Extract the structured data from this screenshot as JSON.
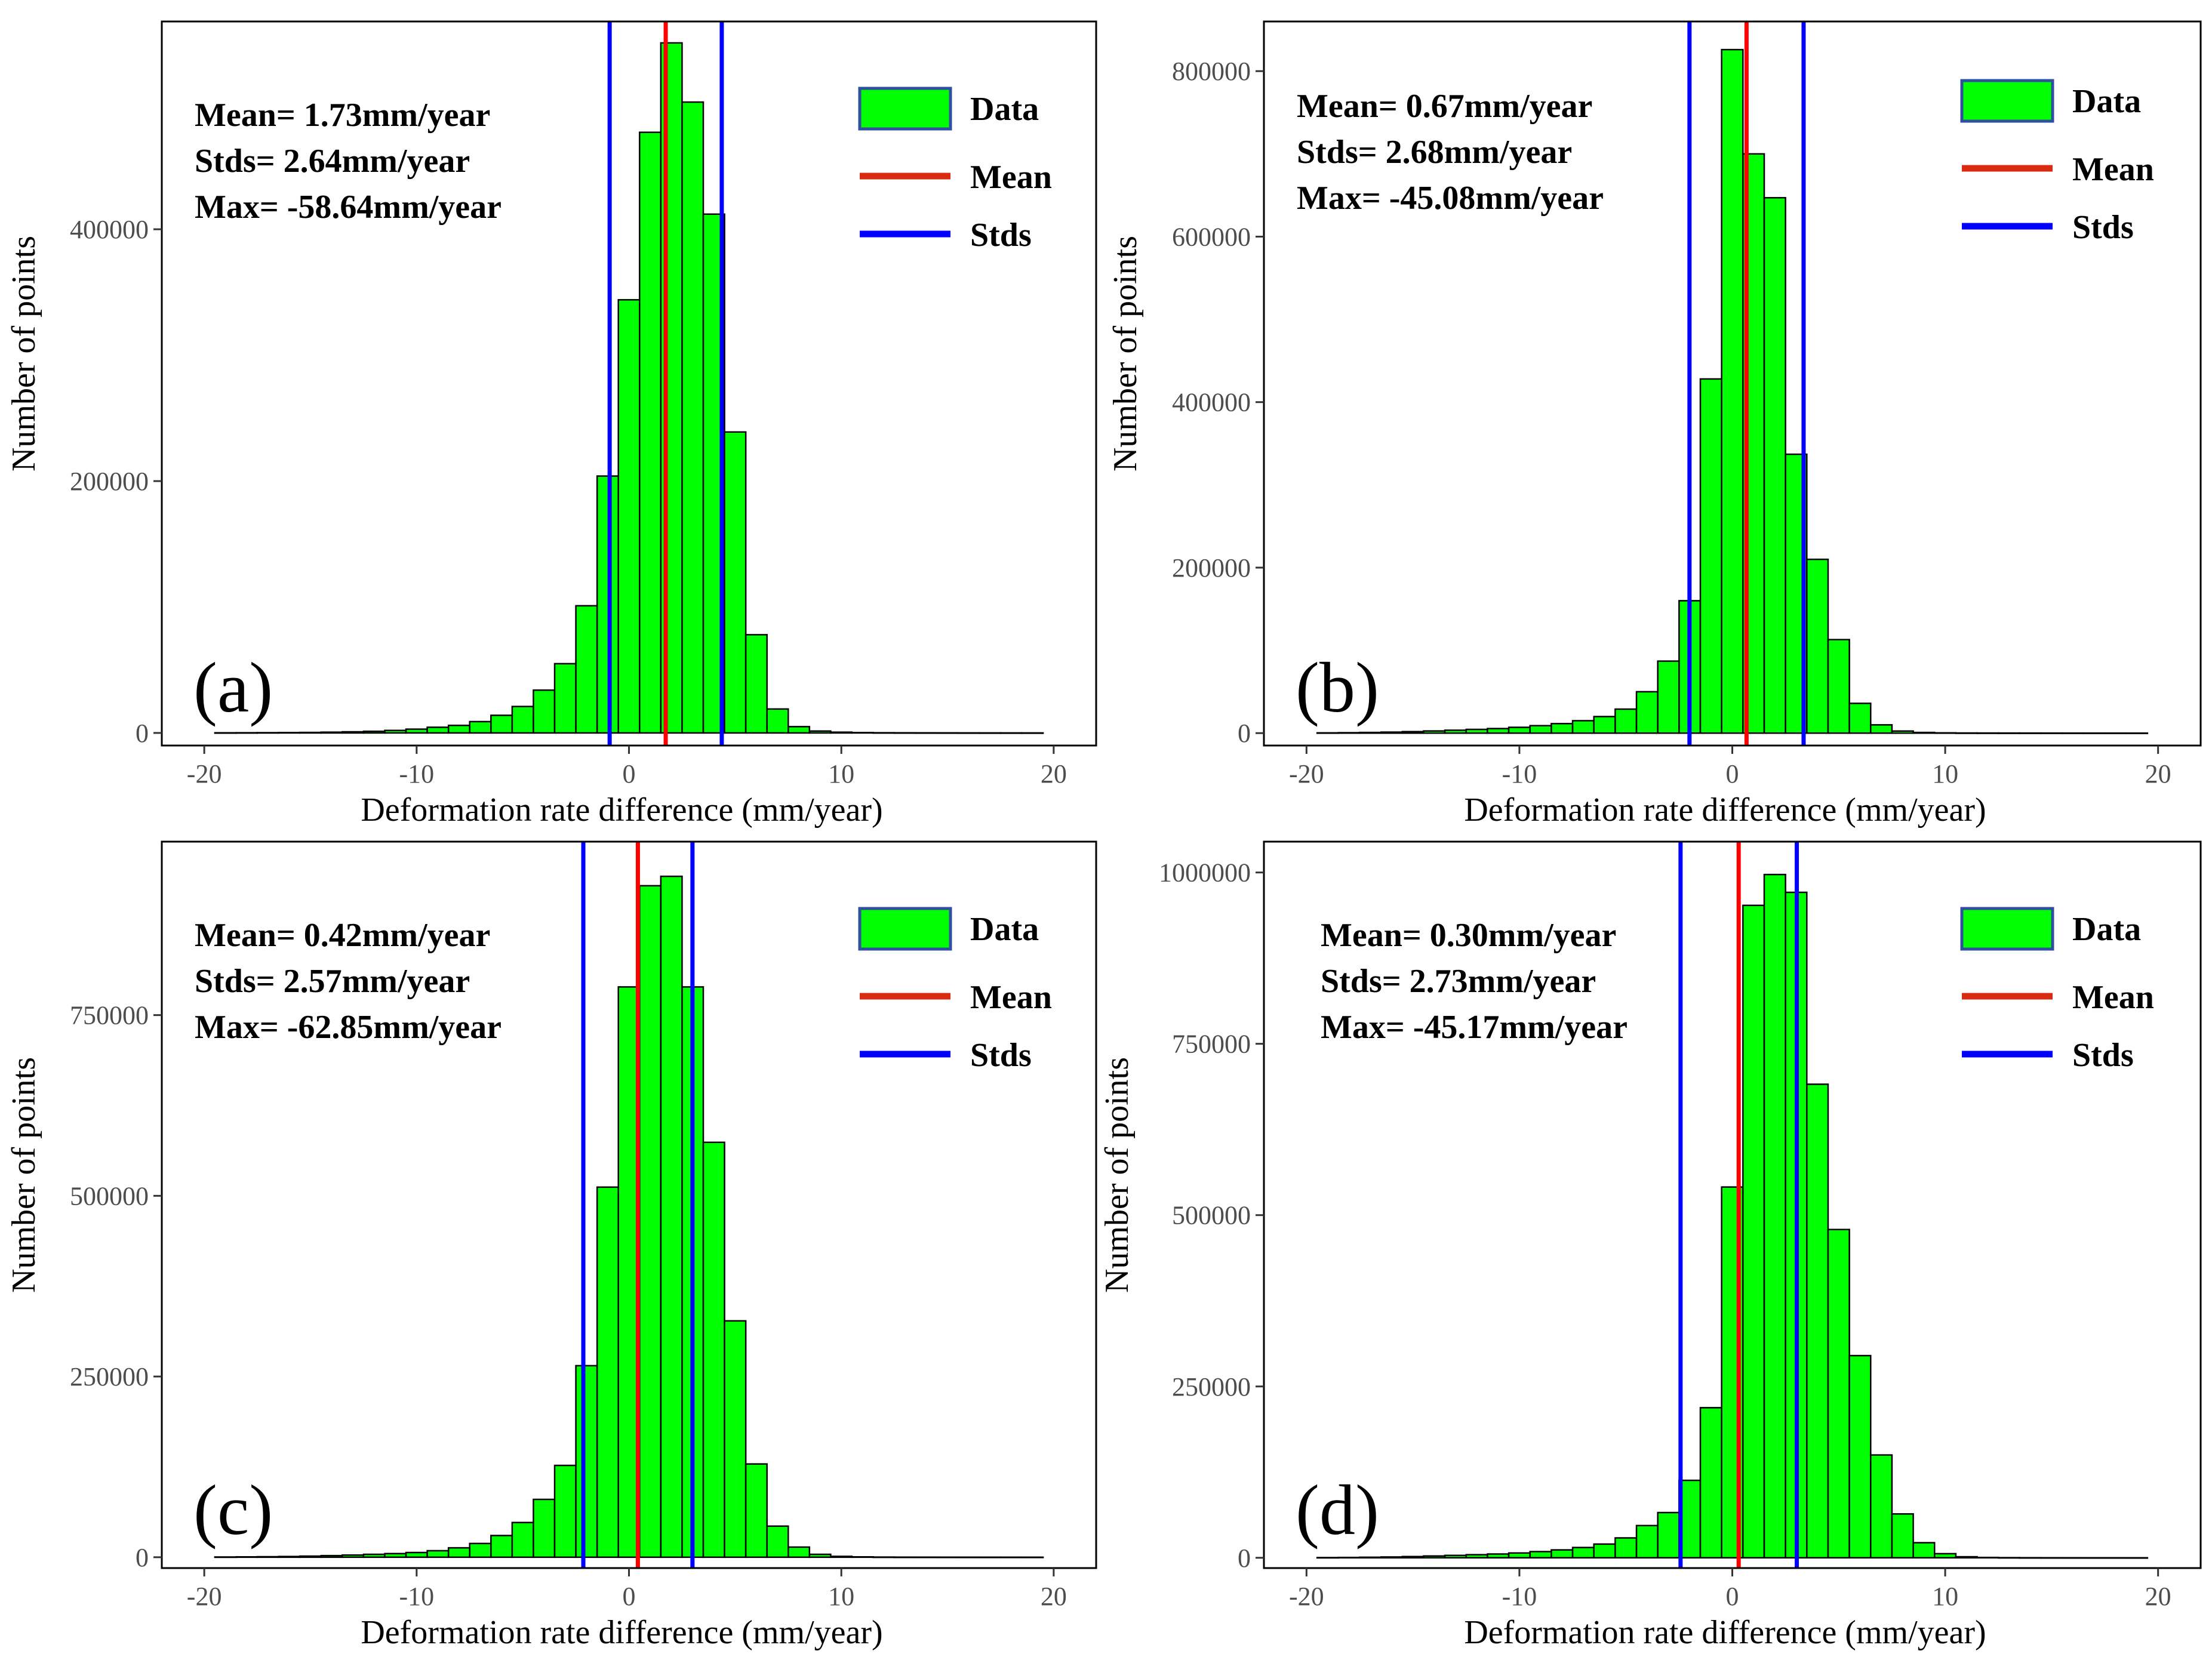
{
  "figure_colors": {
    "bar_fill": "#00ff00",
    "bar_stroke": "#000000",
    "mean_line": "#ff0000",
    "std_line": "#0000ff",
    "legend_mean": "#d92b10",
    "legend_box_stroke": "#2f4f9f"
  },
  "legend_items": [
    "Data",
    "Mean",
    "Stds"
  ],
  "chart_data": [
    {
      "type": "bar",
      "panel_label": "(a)",
      "title": "",
      "xlabel": "Deformation rate difference (mm/year)",
      "ylabel": "Number of points",
      "xlim": [
        -22,
        22
      ],
      "ylim": [
        -10000,
        565000
      ],
      "xticks": [
        -20,
        -10,
        0,
        10,
        20
      ],
      "yticks": [
        0,
        200000,
        400000
      ],
      "ytick_labels": [
        "0",
        "200000",
        "400000"
      ],
      "stats": [
        "Mean= 1.73mm/year",
        "Stds= 2.64mm/year",
        "Max= -58.64mm/year"
      ],
      "mean": 1.73,
      "std_lines": [
        -0.91,
        4.37
      ],
      "bin_width": 1,
      "x": [
        -19,
        -18,
        -17,
        -16,
        -15,
        -14,
        -13,
        -12,
        -11,
        -10,
        -9,
        -8,
        -7,
        -6,
        -5,
        -4,
        -3,
        -2,
        -1,
        0,
        1,
        2,
        3,
        4,
        5,
        6,
        7,
        8,
        9,
        10,
        11,
        12,
        13,
        14,
        15,
        16,
        17,
        18,
        19
      ],
      "values": [
        100,
        150,
        200,
        300,
        400,
        600,
        900,
        1300,
        2000,
        3000,
        4500,
        6000,
        9000,
        14000,
        21000,
        34000,
        55000,
        101000,
        204000,
        344000,
        477000,
        548000,
        501000,
        412000,
        239000,
        78000,
        19000,
        5000,
        1500,
        600,
        300,
        150,
        100,
        80,
        60,
        40,
        30,
        20,
        10
      ]
    },
    {
      "type": "bar",
      "panel_label": "(b)",
      "title": "",
      "xlabel": "Deformation rate difference (mm/year)",
      "ylabel": "Number of points",
      "xlim": [
        -22,
        22
      ],
      "ylim": [
        -15000,
        860000
      ],
      "xticks": [
        -20,
        -10,
        0,
        10,
        20
      ],
      "yticks": [
        0,
        200000,
        400000,
        600000,
        800000
      ],
      "ytick_labels": [
        "0",
        "200000",
        "400000",
        "600000",
        "800000"
      ],
      "stats": [
        "Mean= 0.67mm/year",
        "Stds= 2.68mm/year",
        "Max= -45.08mm/year"
      ],
      "mean": 0.67,
      "std_lines": [
        -2.01,
        3.35
      ],
      "bin_width": 1,
      "x": [
        -19,
        -18,
        -17,
        -16,
        -15,
        -14,
        -13,
        -12,
        -11,
        -10,
        -9,
        -8,
        -7,
        -6,
        -5,
        -4,
        -3,
        -2,
        -1,
        0,
        1,
        2,
        3,
        4,
        5,
        6,
        7,
        8,
        9,
        10,
        11,
        12,
        13,
        14,
        15,
        16,
        17,
        18,
        19
      ],
      "values": [
        300,
        500,
        800,
        1200,
        1800,
        2600,
        3500,
        4500,
        5500,
        7000,
        9000,
        11500,
        15000,
        20000,
        29000,
        50000,
        87000,
        160000,
        428000,
        826000,
        700000,
        647000,
        337000,
        210000,
        113000,
        36000,
        10000,
        2500,
        800,
        300,
        150,
        100,
        80,
        60,
        40,
        30,
        20,
        10,
        5
      ]
    },
    {
      "type": "bar",
      "panel_label": "(c)",
      "title": "",
      "xlabel": "Deformation rate difference (mm/year)",
      "ylabel": "Number of points",
      "xlim": [
        -22,
        22
      ],
      "ylim": [
        -15000,
        990000
      ],
      "xticks": [
        -20,
        -10,
        0,
        10,
        20
      ],
      "yticks": [
        0,
        250000,
        500000,
        750000
      ],
      "ytick_labels": [
        "0",
        "250000",
        "500000",
        "750000"
      ],
      "stats": [
        "Mean= 0.42mm/year",
        "Stds= 2.57mm/year",
        "Max= -62.85mm/year"
      ],
      "mean": 0.42,
      "std_lines": [
        -2.15,
        2.99
      ],
      "bin_width": 1,
      "x": [
        -19,
        -18,
        -17,
        -16,
        -15,
        -14,
        -13,
        -12,
        -11,
        -10,
        -9,
        -8,
        -7,
        -6,
        -5,
        -4,
        -3,
        -2,
        -1,
        0,
        1,
        2,
        3,
        4,
        5,
        6,
        7,
        8,
        9,
        10,
        11,
        12,
        13,
        14,
        15,
        16,
        17,
        18,
        19
      ],
      "values": [
        300,
        500,
        700,
        1000,
        1500,
        2200,
        3000,
        4000,
        5000,
        6500,
        9000,
        13000,
        19000,
        30000,
        48000,
        80000,
        127000,
        265000,
        512000,
        789000,
        929000,
        942000,
        789000,
        574000,
        327000,
        129000,
        43000,
        14000,
        4000,
        1200,
        500,
        200,
        100,
        80,
        60,
        40,
        30,
        20,
        10
      ]
    },
    {
      "type": "bar",
      "panel_label": "(d)",
      "title": "",
      "xlabel": "Deformation rate difference (mm/year)",
      "ylabel": "Number of points",
      "xlim": [
        -22,
        22
      ],
      "ylim": [
        -15000,
        1045000
      ],
      "xticks": [
        -20,
        -10,
        0,
        10,
        20
      ],
      "yticks": [
        0,
        250000,
        500000,
        750000,
        1000000
      ],
      "ytick_labels": [
        "0",
        "250000",
        "500000",
        "750000",
        "1000000"
      ],
      "stats": [
        "Mean= 0.30mm/year",
        "Stds= 2.73mm/year",
        "Max= -45.17mm/year"
      ],
      "mean": 0.3,
      "std_lines": [
        -2.43,
        3.03
      ],
      "bin_width": 1,
      "x": [
        -19,
        -18,
        -17,
        -16,
        -15,
        -14,
        -13,
        -12,
        -11,
        -10,
        -9,
        -8,
        -7,
        -6,
        -5,
        -4,
        -3,
        -2,
        -1,
        0,
        1,
        2,
        3,
        4,
        5,
        6,
        7,
        8,
        9,
        10,
        11,
        12,
        13,
        14,
        15,
        16,
        17,
        18,
        19
      ],
      "values": [
        300,
        500,
        800,
        1200,
        1800,
        2600,
        3500,
        4500,
        5500,
        7000,
        9000,
        11500,
        15000,
        20000,
        29000,
        47000,
        66000,
        113000,
        219000,
        541000,
        952000,
        997000,
        971000,
        691000,
        479000,
        295000,
        150000,
        64000,
        22000,
        6000,
        1500,
        500,
        200,
        100,
        60,
        40,
        30,
        20,
        10
      ]
    }
  ]
}
